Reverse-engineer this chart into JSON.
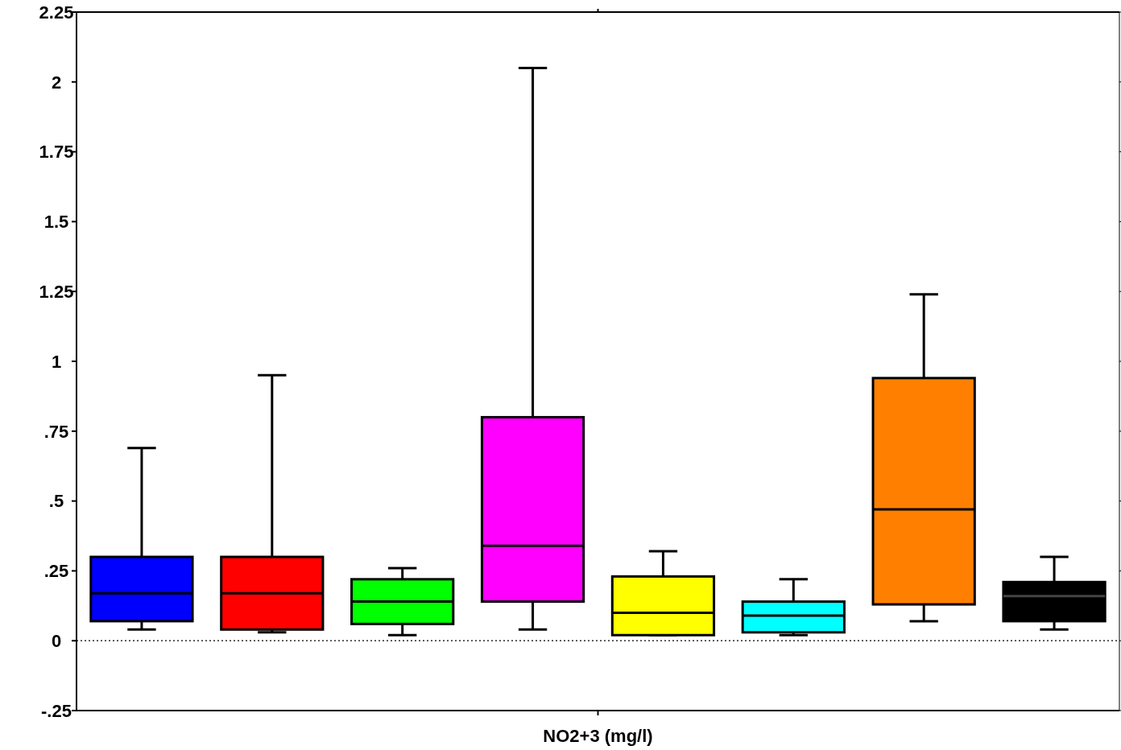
{
  "chart_data": {
    "type": "box",
    "xlabel": "NO2+3 (mg/l)",
    "categories": [
      null,
      null,
      null,
      null,
      null,
      null,
      null,
      null
    ],
    "colors": [
      "#0000ff",
      "#ff0000",
      "#00ff00",
      "#ff00ff",
      "#ffff00",
      "#00ffff",
      "#ff8000",
      "#000000"
    ],
    "boxes": [
      {
        "low": 0.04,
        "q1": 0.07,
        "median": 0.17,
        "q3": 0.3,
        "high": 0.69
      },
      {
        "low": 0.03,
        "q1": 0.04,
        "median": 0.17,
        "q3": 0.3,
        "high": 0.95
      },
      {
        "low": 0.02,
        "q1": 0.06,
        "median": 0.14,
        "q3": 0.22,
        "high": 0.26
      },
      {
        "low": 0.04,
        "q1": 0.14,
        "median": 0.34,
        "q3": 0.8,
        "high": 2.05
      },
      {
        "low": 0.02,
        "q1": 0.02,
        "median": 0.1,
        "q3": 0.23,
        "high": 0.32
      },
      {
        "low": 0.02,
        "q1": 0.03,
        "median": 0.09,
        "q3": 0.14,
        "high": 0.22
      },
      {
        "low": 0.07,
        "q1": 0.13,
        "median": 0.47,
        "q3": 0.94,
        "high": 1.24
      },
      {
        "low": 0.04,
        "q1": 0.07,
        "median": 0.16,
        "q3": 0.21,
        "high": 0.3
      }
    ],
    "ylim": [
      -0.25,
      2.25
    ],
    "yticks": [
      {
        "value": -0.25,
        "label": "-.25"
      },
      0,
      {
        "value": 0.25,
        "label": ".25"
      },
      {
        "value": 0.5,
        "label": ".5"
      },
      {
        "value": 0.75,
        "label": ".75"
      },
      1,
      1.25,
      1.5,
      1.75,
      2,
      2.25
    ],
    "ref_lines": [
      {
        "axis": "y",
        "value": 0,
        "color": "#000000",
        "line_style": "dotted"
      }
    ],
    "grid": false
  }
}
